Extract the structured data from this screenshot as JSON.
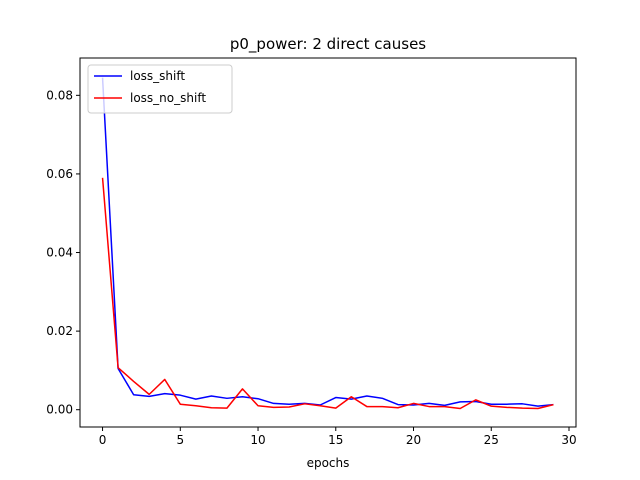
{
  "chart_data": {
    "type": "line",
    "title": "p0_power: 2 direct causes",
    "xlabel": "epochs",
    "ylabel": "",
    "xlim": [
      -1.45,
      30.45
    ],
    "ylim": [
      -0.0044,
      0.0895
    ],
    "xticks": [
      0,
      5,
      10,
      15,
      20,
      25,
      30
    ],
    "xtick_labels": [
      "0",
      "5",
      "10",
      "15",
      "20",
      "25",
      "30"
    ],
    "yticks": [
      0.0,
      0.02,
      0.04,
      0.06,
      0.08
    ],
    "ytick_labels": [
      "0.00",
      "0.02",
      "0.04",
      "0.06",
      "0.08"
    ],
    "grid": false,
    "legend_position": "top-left",
    "x": [
      0,
      1,
      2,
      3,
      4,
      5,
      6,
      7,
      8,
      9,
      10,
      11,
      12,
      13,
      14,
      15,
      16,
      17,
      18,
      19,
      20,
      21,
      22,
      23,
      24,
      25,
      26,
      27,
      28,
      29
    ],
    "series": [
      {
        "name": "loss_shift",
        "color": "#0000ff",
        "values": [
          0.0845,
          0.0105,
          0.0038,
          0.0034,
          0.0041,
          0.0037,
          0.0027,
          0.0035,
          0.0029,
          0.0033,
          0.0028,
          0.0016,
          0.0014,
          0.0016,
          0.0012,
          0.0031,
          0.0027,
          0.0035,
          0.0029,
          0.0013,
          0.0012,
          0.0016,
          0.0011,
          0.002,
          0.0021,
          0.0014,
          0.0014,
          0.0015,
          0.0009,
          0.0013
        ]
      },
      {
        "name": "loss_no_shift",
        "color": "#ff0000",
        "values": [
          0.059,
          0.0107,
          0.0072,
          0.0039,
          0.0077,
          0.0014,
          0.001,
          0.0005,
          0.0004,
          0.0053,
          0.001,
          0.0006,
          0.0007,
          0.0015,
          0.001,
          0.0004,
          0.0033,
          0.0008,
          0.0008,
          0.0005,
          0.0016,
          0.0008,
          0.0008,
          0.0003,
          0.0025,
          0.0009,
          0.0006,
          0.0004,
          0.0003,
          0.0013
        ]
      }
    ]
  }
}
